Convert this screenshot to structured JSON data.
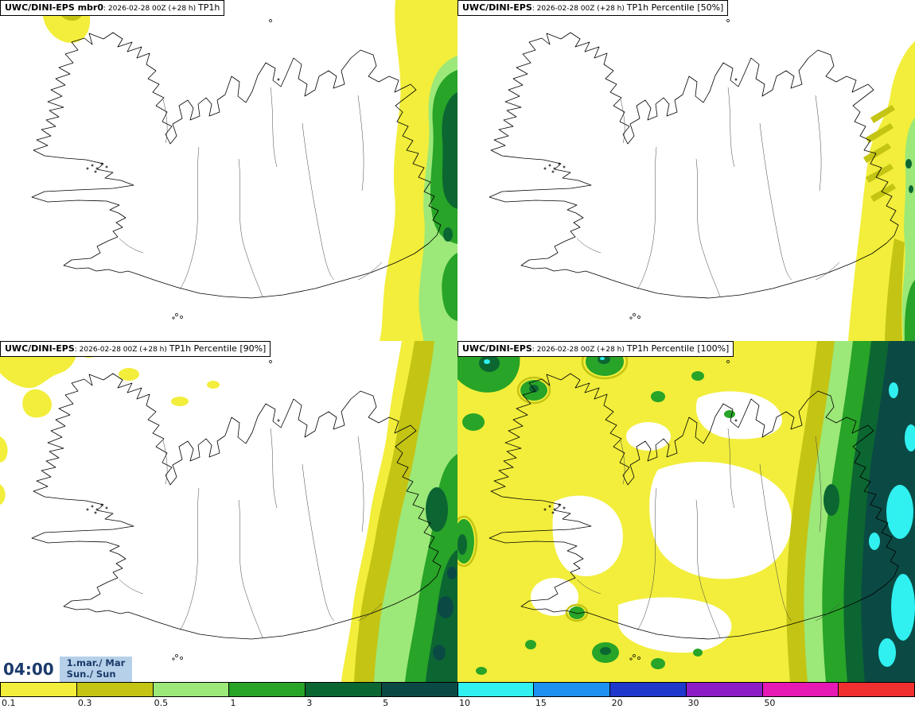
{
  "panels": [
    {
      "name": "member-0",
      "prefix": "UWC/DINI-EPS mbr0",
      "middle": ": 2026-02-28 00Z (+28 h) ",
      "suffix": "TP1h"
    },
    {
      "name": "percentile-50",
      "prefix": "UWC/DINI-EPS",
      "middle": ": 2026-02-28 00Z (+28 h) ",
      "suffix": "TP1h Percentile [50%]"
    },
    {
      "name": "percentile-90",
      "prefix": "UWC/DINI-EPS",
      "middle": ": 2026-02-28 00Z (+28 h) ",
      "suffix": "TP1h Percentile [90%]"
    },
    {
      "name": "percentile-100",
      "prefix": "UWC/DINI-EPS",
      "middle": ": 2026-02-28 00Z (+28 h) ",
      "suffix": "TP1h Percentile [100%]"
    }
  ],
  "valid_time": {
    "time": "04:00",
    "date": "1.mar./ Mar",
    "day": "Sun./ Sun"
  },
  "colorbar": {
    "labels": [
      "0.1",
      "0.3",
      "0.5",
      "1",
      "3",
      "5",
      "10",
      "15",
      "20",
      "30",
      "50"
    ],
    "colors": [
      "#f2ee3b",
      "#c4c414",
      "#9ce878",
      "#28a428",
      "#0c6632",
      "#0b4a44",
      "#30f0f0",
      "#1e90f0",
      "#2038cc",
      "#8c1ec8",
      "#e619b4",
      "#f03030"
    ]
  },
  "colors": {
    "time_text": "#1b3a6b",
    "date_bg": "#b5d0e8"
  }
}
